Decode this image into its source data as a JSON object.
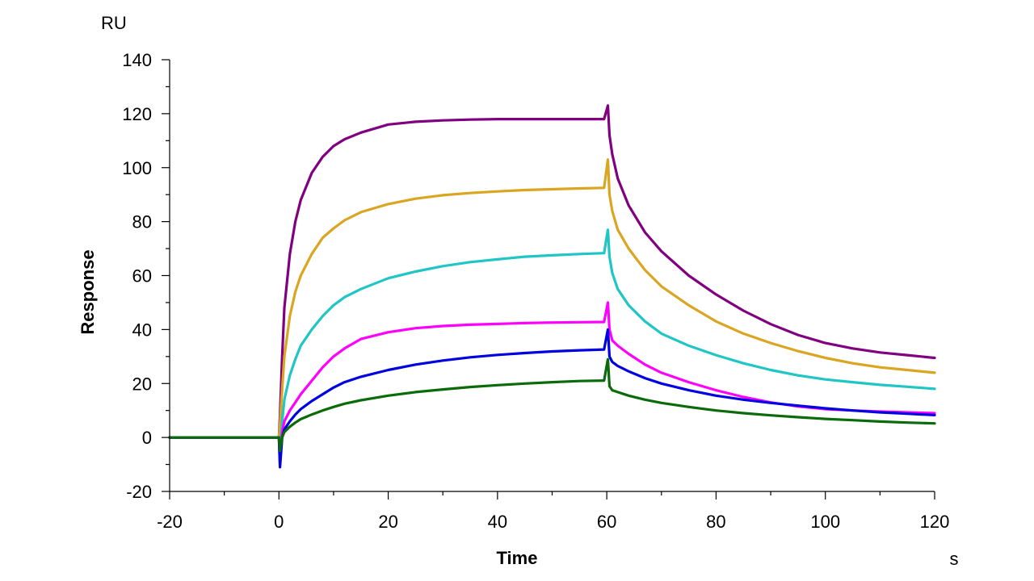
{
  "chart_data": {
    "type": "line",
    "title": "",
    "xlabel": "Time",
    "ylabel": "Response",
    "x_unit": "s",
    "y_unit": "RU",
    "xlim": [
      -20,
      120
    ],
    "ylim": [
      -20,
      140
    ],
    "x_ticks": [
      -20,
      0,
      20,
      40,
      60,
      80,
      100,
      120
    ],
    "y_ticks": [
      -20,
      0,
      20,
      40,
      60,
      80,
      100,
      120,
      140
    ],
    "grid": false,
    "legend": "none",
    "series": [
      {
        "color": "#800080",
        "x": [
          -20,
          0,
          0.2,
          0.6,
          1,
          2,
          3,
          4,
          6,
          8,
          10,
          12,
          15,
          20,
          25,
          30,
          35,
          40,
          45,
          50,
          55,
          59.5,
          60.2,
          60.5,
          61,
          62,
          64,
          67,
          70,
          75,
          80,
          85,
          90,
          95,
          100,
          105,
          110,
          115,
          120
        ],
        "y": [
          0,
          0,
          8,
          30,
          48,
          68,
          80,
          88,
          98,
          104,
          108,
          110.5,
          113,
          116,
          117,
          117.5,
          117.8,
          118,
          118,
          118,
          118,
          118,
          123,
          112,
          105,
          96,
          86,
          76,
          69,
          60,
          53,
          47,
          42,
          38,
          35,
          33,
          31.5,
          30.5,
          29.5
        ]
      },
      {
        "color": "#DAA520",
        "x": [
          -20,
          0,
          0.2,
          0.6,
          1,
          2,
          3,
          4,
          6,
          8,
          10,
          12,
          15,
          20,
          25,
          30,
          35,
          40,
          45,
          50,
          55,
          59.5,
          60.2,
          60.5,
          61,
          62,
          64,
          67,
          70,
          75,
          80,
          85,
          90,
          95,
          100,
          105,
          110,
          115,
          120
        ],
        "y": [
          0,
          0,
          5,
          18,
          30,
          45,
          54,
          60,
          68,
          74,
          77.5,
          80.5,
          83.5,
          86.5,
          88.5,
          89.8,
          90.6,
          91.2,
          91.7,
          92,
          92.3,
          92.5,
          103,
          90,
          84,
          77,
          70,
          62,
          56,
          49,
          43,
          38.5,
          35,
          32,
          29.5,
          27.5,
          26,
          25,
          24
        ]
      },
      {
        "color": "#20C5C5",
        "x": [
          -20,
          0,
          0.2,
          0.6,
          1,
          2,
          3,
          4,
          6,
          8,
          10,
          12,
          15,
          20,
          25,
          30,
          35,
          40,
          45,
          50,
          55,
          59.5,
          60.2,
          60.5,
          61,
          62,
          64,
          67,
          70,
          75,
          80,
          85,
          90,
          95,
          100,
          105,
          110,
          115,
          120
        ],
        "y": [
          0,
          0,
          -6,
          6,
          14,
          23,
          29,
          34,
          40,
          45,
          49,
          52,
          55,
          59,
          61.5,
          63.5,
          65,
          66,
          67,
          67.5,
          68,
          68.3,
          77,
          67,
          61,
          55,
          49,
          43,
          38.5,
          34,
          30.5,
          27.5,
          25,
          23,
          21.5,
          20.5,
          19.5,
          18.8,
          18
        ]
      },
      {
        "color": "#FF00FF",
        "x": [
          -20,
          0,
          0.2,
          0.6,
          1,
          2,
          3,
          4,
          6,
          8,
          10,
          12,
          15,
          20,
          25,
          30,
          35,
          40,
          45,
          50,
          55,
          59.5,
          60.2,
          60.5,
          61,
          62,
          64,
          67,
          70,
          75,
          80,
          85,
          90,
          95,
          100,
          105,
          110,
          115,
          120
        ],
        "y": [
          0,
          0,
          -10,
          2,
          6,
          10,
          13,
          16,
          21,
          26,
          30,
          33,
          36.5,
          39,
          40.5,
          41.3,
          41.8,
          42.1,
          42.4,
          42.6,
          42.7,
          42.8,
          50,
          40,
          36,
          34,
          31,
          27,
          24,
          20.5,
          17.5,
          15,
          13,
          11.5,
          10.5,
          10,
          9.6,
          9.3,
          9
        ]
      },
      {
        "color": "#0000E0",
        "x": [
          -20,
          0,
          0.2,
          0.6,
          1,
          2,
          3,
          4,
          6,
          8,
          10,
          12,
          15,
          20,
          25,
          30,
          35,
          40,
          45,
          50,
          55,
          59.5,
          60.2,
          60.5,
          61,
          62,
          64,
          67,
          70,
          75,
          80,
          85,
          90,
          95,
          100,
          105,
          110,
          115,
          120
        ],
        "y": [
          0,
          0,
          -11,
          0,
          3,
          6,
          8.5,
          10.5,
          13.5,
          16,
          18.5,
          20.5,
          22.5,
          25,
          27,
          28.5,
          29.7,
          30.6,
          31.3,
          31.9,
          32.3,
          32.6,
          40,
          30,
          28,
          26.5,
          24.5,
          22,
          20,
          17.5,
          15.5,
          14,
          12.8,
          11.8,
          10.8,
          10,
          9.3,
          8.8,
          8.3
        ]
      },
      {
        "color": "#0B6B0B",
        "x": [
          -20,
          0,
          0.2,
          0.6,
          1,
          2,
          3,
          4,
          6,
          8,
          10,
          12,
          15,
          20,
          25,
          30,
          35,
          40,
          45,
          50,
          55,
          59.5,
          60.2,
          60.5,
          61,
          62,
          64,
          67,
          70,
          75,
          80,
          85,
          90,
          95,
          100,
          105,
          110,
          115,
          120
        ],
        "y": [
          0,
          0,
          -5,
          0,
          2,
          4,
          5.5,
          6.8,
          8.5,
          10,
          11.3,
          12.5,
          13.8,
          15.5,
          16.8,
          17.8,
          18.7,
          19.4,
          20,
          20.5,
          20.9,
          21.1,
          29,
          19,
          17.5,
          16.8,
          15.5,
          14,
          12.8,
          11.3,
          10,
          9,
          8.2,
          7.5,
          6.9,
          6.4,
          5.9,
          5.5,
          5.2
        ]
      }
    ]
  }
}
